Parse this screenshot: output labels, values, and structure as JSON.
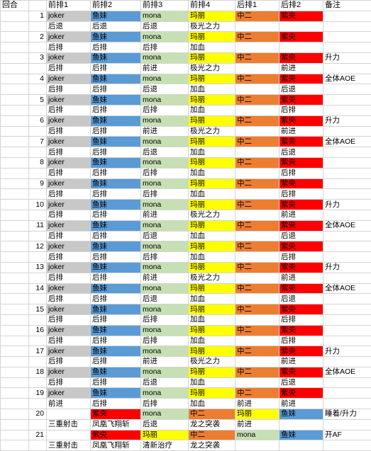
{
  "colors": {
    "grey": "#c8c8c8",
    "blue": "#5b9bd5",
    "green": "#c6e0b4",
    "yellow": "#ffff00",
    "orange": "#ed7d31",
    "red": "#ff0000",
    "none": "#ffffff"
  },
  "header": [
    "回合",
    "",
    "前排1",
    "前排2",
    "前排3",
    "前排4",
    "后排1",
    "后排2",
    "备注"
  ],
  "rows": [
    {
      "num": "1",
      "cells": [
        [
          "joker",
          "grey"
        ],
        [
          "鱼妹",
          "blue"
        ],
        [
          "mona",
          "green"
        ],
        [
          "玛丽",
          "yellow"
        ],
        [
          "中二",
          "orange"
        ],
        [
          "紫央",
          "red"
        ]
      ],
      "note": ""
    },
    {
      "num": "",
      "cells": [
        [
          "后退",
          ""
        ],
        [
          "后退",
          ""
        ],
        [
          "后退",
          ""
        ],
        [
          "极光之力",
          ""
        ],
        [
          "",
          ""
        ],
        [
          "",
          ""
        ]
      ],
      "note": ""
    },
    {
      "num": "2",
      "cells": [
        [
          "joker",
          "grey"
        ],
        [
          "鱼妹",
          "blue"
        ],
        [
          "mona",
          "green"
        ],
        [
          "玛丽",
          "yellow"
        ],
        [
          "中二",
          "orange"
        ],
        [
          "紫央",
          "red"
        ]
      ],
      "note": ""
    },
    {
      "num": "",
      "cells": [
        [
          "后排",
          ""
        ],
        [
          "后排",
          ""
        ],
        [
          "后排",
          ""
        ],
        [
          "加血",
          ""
        ],
        [
          "",
          ""
        ],
        [
          "",
          ""
        ]
      ],
      "note": ""
    },
    {
      "num": "3",
      "cells": [
        [
          "joker",
          "grey"
        ],
        [
          "鱼妹",
          "blue"
        ],
        [
          "mona",
          "green"
        ],
        [
          "玛丽",
          "yellow"
        ],
        [
          "中二",
          "orange"
        ],
        [
          "紫央",
          "red"
        ]
      ],
      "note": "升力"
    },
    {
      "num": "",
      "cells": [
        [
          "后排",
          ""
        ],
        [
          "后排",
          ""
        ],
        [
          "前进",
          ""
        ],
        [
          "极光之力",
          ""
        ],
        [
          "",
          ""
        ],
        [
          "前进",
          ""
        ]
      ],
      "note": ""
    },
    {
      "num": "4",
      "cells": [
        [
          "joker",
          "grey"
        ],
        [
          "鱼妹",
          "blue"
        ],
        [
          "mona",
          "green"
        ],
        [
          "玛丽",
          "yellow"
        ],
        [
          "中二",
          "orange"
        ],
        [
          "紫央",
          "red"
        ]
      ],
      "note": "全体AOE"
    },
    {
      "num": "",
      "cells": [
        [
          "后排",
          ""
        ],
        [
          "后排",
          ""
        ],
        [
          "后退",
          ""
        ],
        [
          "加血",
          ""
        ],
        [
          "",
          ""
        ],
        [
          "后退",
          ""
        ]
      ],
      "note": ""
    },
    {
      "num": "5",
      "cells": [
        [
          "joker",
          "grey"
        ],
        [
          "鱼妹",
          "blue"
        ],
        [
          "mona",
          "green"
        ],
        [
          "玛丽",
          "yellow"
        ],
        [
          "中二",
          "orange"
        ],
        [
          "紫央",
          "red"
        ]
      ],
      "note": ""
    },
    {
      "num": "",
      "cells": [
        [
          "后排",
          ""
        ],
        [
          "后排",
          ""
        ],
        [
          "后排",
          ""
        ],
        [
          "加血",
          ""
        ],
        [
          "",
          ""
        ],
        [
          "后排",
          ""
        ]
      ],
      "note": ""
    },
    {
      "num": "6",
      "cells": [
        [
          "joker",
          "grey"
        ],
        [
          "鱼妹",
          "blue"
        ],
        [
          "mona",
          "green"
        ],
        [
          "玛丽",
          "yellow"
        ],
        [
          "中二",
          "orange"
        ],
        [
          "紫央",
          "red"
        ]
      ],
      "note": "升力"
    },
    {
      "num": "",
      "cells": [
        [
          "后排",
          ""
        ],
        [
          "后排",
          ""
        ],
        [
          "前进",
          ""
        ],
        [
          "极光之力",
          ""
        ],
        [
          "",
          ""
        ],
        [
          "前进",
          ""
        ]
      ],
      "note": ""
    },
    {
      "num": "7",
      "cells": [
        [
          "joker",
          "grey"
        ],
        [
          "鱼妹",
          "blue"
        ],
        [
          "mona",
          "green"
        ],
        [
          "玛丽",
          "yellow"
        ],
        [
          "中二",
          "orange"
        ],
        [
          "紫央",
          "red"
        ]
      ],
      "note": "全体AOE"
    },
    {
      "num": "",
      "cells": [
        [
          "后排",
          ""
        ],
        [
          "后排",
          ""
        ],
        [
          "后退",
          ""
        ],
        [
          "加血",
          ""
        ],
        [
          "",
          ""
        ],
        [
          "后退",
          ""
        ]
      ],
      "note": ""
    },
    {
      "num": "8",
      "cells": [
        [
          "joker",
          "grey"
        ],
        [
          "鱼妹",
          "blue"
        ],
        [
          "mona",
          "green"
        ],
        [
          "玛丽",
          "yellow"
        ],
        [
          "中二",
          "orange"
        ],
        [
          "紫央",
          "red"
        ]
      ],
      "note": ""
    },
    {
      "num": "",
      "cells": [
        [
          "后排",
          ""
        ],
        [
          "后排",
          ""
        ],
        [
          "后排",
          ""
        ],
        [
          "加血",
          ""
        ],
        [
          "",
          ""
        ],
        [
          "后排",
          ""
        ]
      ],
      "note": ""
    },
    {
      "num": "9",
      "cells": [
        [
          "joker",
          "grey"
        ],
        [
          "鱼妹",
          "blue"
        ],
        [
          "mona",
          "green"
        ],
        [
          "玛丽",
          "yellow"
        ],
        [
          "中二",
          "orange"
        ],
        [
          "紫央",
          "red"
        ]
      ],
      "note": ""
    },
    {
      "num": "",
      "cells": [
        [
          "后排",
          ""
        ],
        [
          "后排",
          ""
        ],
        [
          "后排",
          ""
        ],
        [
          "加血",
          ""
        ],
        [
          "",
          ""
        ],
        [
          "后排",
          ""
        ]
      ],
      "note": ""
    },
    {
      "num": "10",
      "cells": [
        [
          "joker",
          "grey"
        ],
        [
          "鱼妹",
          "blue"
        ],
        [
          "mona",
          "green"
        ],
        [
          "玛丽",
          "yellow"
        ],
        [
          "中二",
          "orange"
        ],
        [
          "紫央",
          "red"
        ]
      ],
      "note": "升力"
    },
    {
      "num": "",
      "cells": [
        [
          "后排",
          ""
        ],
        [
          "后排",
          ""
        ],
        [
          "前进",
          ""
        ],
        [
          "极光之力",
          ""
        ],
        [
          "",
          ""
        ],
        [
          "前进",
          ""
        ]
      ],
      "note": ""
    },
    {
      "num": "11",
      "cells": [
        [
          "joker",
          "grey"
        ],
        [
          "鱼妹",
          "blue"
        ],
        [
          "mona",
          "green"
        ],
        [
          "玛丽",
          "yellow"
        ],
        [
          "中二",
          "orange"
        ],
        [
          "紫央",
          "red"
        ]
      ],
      "note": "全体AOE"
    },
    {
      "num": "",
      "cells": [
        [
          "后排",
          ""
        ],
        [
          "后排",
          ""
        ],
        [
          "后退",
          ""
        ],
        [
          "加血",
          ""
        ],
        [
          "",
          ""
        ],
        [
          "后退",
          ""
        ]
      ],
      "note": ""
    },
    {
      "num": "12",
      "cells": [
        [
          "joker",
          "grey"
        ],
        [
          "鱼妹",
          "blue"
        ],
        [
          "mona",
          "green"
        ],
        [
          "玛丽",
          "yellow"
        ],
        [
          "中二",
          "orange"
        ],
        [
          "紫央",
          "red"
        ]
      ],
      "note": ""
    },
    {
      "num": "",
      "cells": [
        [
          "后排",
          ""
        ],
        [
          "后排",
          ""
        ],
        [
          "后排",
          ""
        ],
        [
          "加血",
          ""
        ],
        [
          "",
          ""
        ],
        [
          "后排",
          ""
        ]
      ],
      "note": ""
    },
    {
      "num": "13",
      "cells": [
        [
          "joker",
          "grey"
        ],
        [
          "鱼妹",
          "blue"
        ],
        [
          "mona",
          "green"
        ],
        [
          "玛丽",
          "yellow"
        ],
        [
          "中二",
          "orange"
        ],
        [
          "紫央",
          "red"
        ]
      ],
      "note": "升力"
    },
    {
      "num": "",
      "cells": [
        [
          "后排",
          ""
        ],
        [
          "后排",
          ""
        ],
        [
          "前进",
          ""
        ],
        [
          "极光之力",
          ""
        ],
        [
          "",
          ""
        ],
        [
          "前进",
          ""
        ]
      ],
      "note": ""
    },
    {
      "num": "14",
      "cells": [
        [
          "joker",
          "grey"
        ],
        [
          "鱼妹",
          "blue"
        ],
        [
          "mona",
          "green"
        ],
        [
          "玛丽",
          "yellow"
        ],
        [
          "中二",
          "orange"
        ],
        [
          "紫央",
          "red"
        ]
      ],
      "note": "全体AOE"
    },
    {
      "num": "",
      "cells": [
        [
          "后排",
          ""
        ],
        [
          "后排",
          ""
        ],
        [
          "后退",
          ""
        ],
        [
          "加血",
          ""
        ],
        [
          "",
          ""
        ],
        [
          "后退",
          ""
        ]
      ],
      "note": ""
    },
    {
      "num": "15",
      "cells": [
        [
          "joker",
          "grey"
        ],
        [
          "鱼妹",
          "blue"
        ],
        [
          "mona",
          "green"
        ],
        [
          "玛丽",
          "yellow"
        ],
        [
          "中二",
          "orange"
        ],
        [
          "紫央",
          "red"
        ]
      ],
      "note": ""
    },
    {
      "num": "",
      "cells": [
        [
          "后排",
          ""
        ],
        [
          "后排",
          ""
        ],
        [
          "后排",
          ""
        ],
        [
          "加血",
          ""
        ],
        [
          "",
          ""
        ],
        [
          "后排",
          ""
        ]
      ],
      "note": ""
    },
    {
      "num": "16",
      "cells": [
        [
          "joker",
          "grey"
        ],
        [
          "鱼妹",
          "blue"
        ],
        [
          "mona",
          "green"
        ],
        [
          "玛丽",
          "yellow"
        ],
        [
          "中二",
          "orange"
        ],
        [
          "紫央",
          "red"
        ]
      ],
      "note": ""
    },
    {
      "num": "",
      "cells": [
        [
          "后排",
          ""
        ],
        [
          "后排",
          ""
        ],
        [
          "后排",
          ""
        ],
        [
          "加血",
          ""
        ],
        [
          "",
          ""
        ],
        [
          "后排",
          ""
        ]
      ],
      "note": ""
    },
    {
      "num": "17",
      "cells": [
        [
          "joker",
          "grey"
        ],
        [
          "鱼妹",
          "blue"
        ],
        [
          "mona",
          "green"
        ],
        [
          "玛丽",
          "yellow"
        ],
        [
          "中二",
          "orange"
        ],
        [
          "紫央",
          "red"
        ]
      ],
      "note": "升力"
    },
    {
      "num": "",
      "cells": [
        [
          "后排",
          ""
        ],
        [
          "后排",
          ""
        ],
        [
          "前进",
          ""
        ],
        [
          "极光之力",
          ""
        ],
        [
          "",
          ""
        ],
        [
          "前进",
          ""
        ]
      ],
      "note": ""
    },
    {
      "num": "18",
      "cells": [
        [
          "joker",
          "grey"
        ],
        [
          "鱼妹",
          "blue"
        ],
        [
          "mona",
          "green"
        ],
        [
          "玛丽",
          "yellow"
        ],
        [
          "中二",
          "orange"
        ],
        [
          "紫央",
          "red"
        ]
      ],
      "note": "全体AOE"
    },
    {
      "num": "",
      "cells": [
        [
          "后排",
          ""
        ],
        [
          "后排",
          ""
        ],
        [
          "后退",
          ""
        ],
        [
          "加血",
          ""
        ],
        [
          "",
          ""
        ],
        [
          "后退",
          ""
        ]
      ],
      "note": ""
    },
    {
      "num": "19",
      "cells": [
        [
          "joker",
          "grey"
        ],
        [
          "鱼妹",
          "blue"
        ],
        [
          "mona",
          "green"
        ],
        [
          "玛丽",
          "yellow"
        ],
        [
          "中二",
          "orange"
        ],
        [
          "紫央",
          "red"
        ]
      ],
      "note": ""
    },
    {
      "num": "",
      "cells": [
        [
          "前进",
          ""
        ],
        [
          "后排",
          ""
        ],
        [
          "后排",
          ""
        ],
        [
          "加血",
          ""
        ],
        [
          "前进",
          ""
        ],
        [
          "前进",
          ""
        ]
      ],
      "note": ""
    },
    {
      "num": "20",
      "cells": [
        [
          "",
          ""
        ],
        [
          "紫央",
          "red"
        ],
        [
          "mona",
          "green"
        ],
        [
          "中二",
          "orange"
        ],
        [
          "玛丽",
          "yellow"
        ],
        [
          "鱼妹",
          "blue"
        ]
      ],
      "note": "睡着/升力"
    },
    {
      "num": "",
      "cells": [
        [
          "三重射击",
          ""
        ],
        [
          "凤凰飞翔斩",
          ""
        ],
        [
          "后退",
          ""
        ],
        [
          "龙之突袭",
          ""
        ],
        [
          "前进",
          ""
        ],
        [
          "",
          ""
        ]
      ],
      "note": ""
    },
    {
      "num": "21",
      "cells": [
        [
          "",
          ""
        ],
        [
          "紫央",
          "red"
        ],
        [
          "玛丽",
          "yellow"
        ],
        [
          "中二",
          "orange"
        ],
        [
          "mona",
          "green"
        ],
        [
          "鱼妹",
          "blue"
        ]
      ],
      "note": "开AF"
    },
    {
      "num": "",
      "cells": [
        [
          "三重射击",
          ""
        ],
        [
          "凤凰飞翔斩",
          ""
        ],
        [
          "清新治疗",
          ""
        ],
        [
          "龙之突袭",
          ""
        ],
        [
          "",
          ""
        ],
        [
          "",
          ""
        ]
      ],
      "note": ""
    }
  ]
}
